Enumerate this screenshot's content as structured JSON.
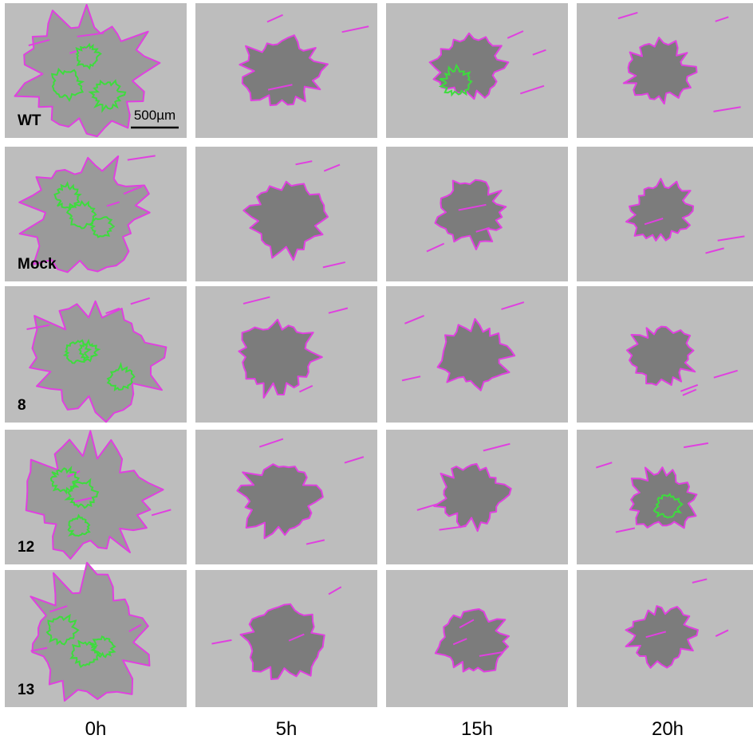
{
  "rows": [
    {
      "label": "WT"
    },
    {
      "label": "Mock"
    },
    {
      "label": "8"
    },
    {
      "label": "12"
    },
    {
      "label": "13"
    }
  ],
  "columns": [
    "0h",
    "5h",
    "15h",
    "20h"
  ],
  "scale_bar": "500µm"
}
